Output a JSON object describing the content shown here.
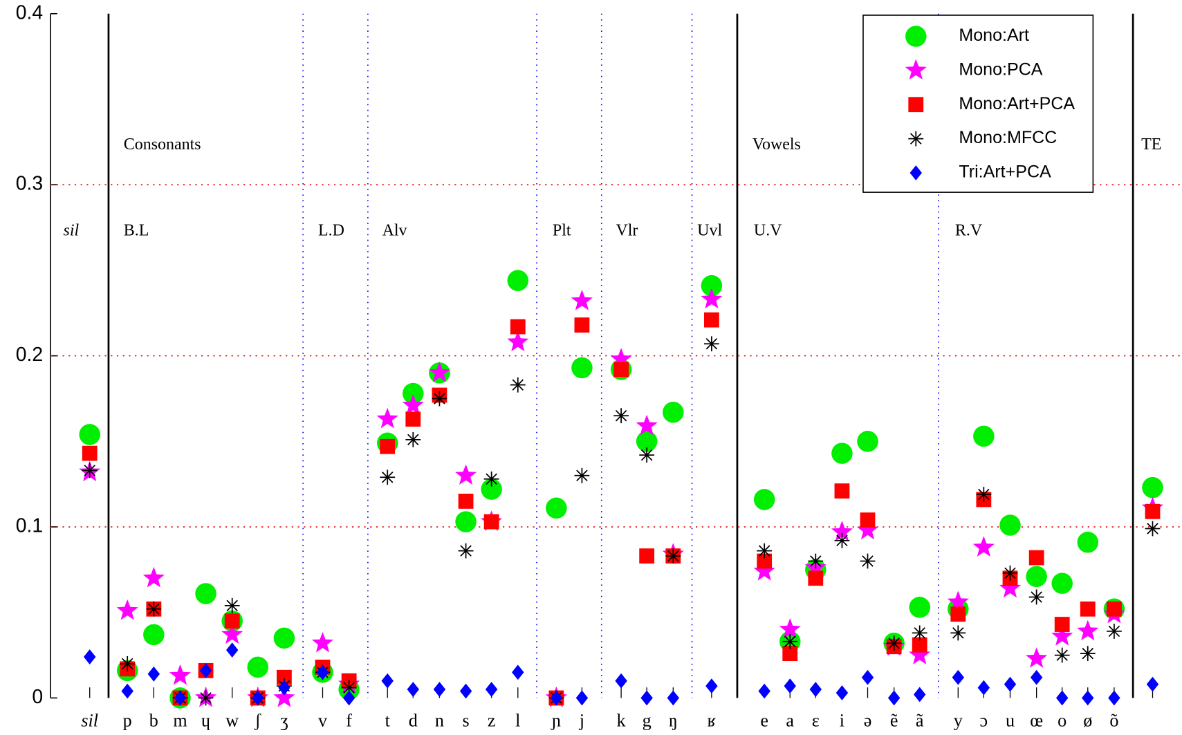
{
  "chart_data": {
    "type": "scatter",
    "categories": [
      "sil",
      "p",
      "b",
      "m",
      "ɥ",
      "w",
      "ʃ",
      "ʒ",
      "v",
      "f",
      "t",
      "d",
      "n",
      "s",
      "z",
      "l",
      "ɲ",
      "j",
      "k",
      "g",
      "ŋ",
      "ʁ",
      "e",
      "a",
      "ɛ",
      "i",
      "ə",
      "ẽ",
      "ã",
      "y",
      "ɔ",
      "u",
      "œ",
      "o",
      "ø",
      "õ",
      null
    ],
    "series": [
      {
        "name": "Mono:Art",
        "color": "#00ee00",
        "marker": "circle",
        "values": [
          0.154,
          0.016,
          0.037,
          0,
          0.061,
          0.045,
          0.018,
          0.035,
          0.015,
          0.005,
          0.149,
          0.178,
          0.19,
          0.103,
          0.122,
          0.244,
          0.111,
          0.193,
          0.192,
          0.15,
          0.167,
          0.241,
          0.116,
          0.033,
          0.075,
          0.143,
          0.15,
          0.032,
          0.053,
          0.052,
          0.153,
          0.101,
          0.071,
          0.067,
          0.091,
          0.052,
          0.123
        ]
      },
      {
        "name": "Mono:PCA",
        "color": "#ff00ff",
        "marker": "star",
        "values": [
          0.132,
          0.051,
          0.07,
          0.013,
          0,
          0.037,
          0,
          0,
          0.032,
          0.008,
          0.163,
          0.171,
          0.19,
          0.13,
          0.103,
          0.208,
          0,
          0.232,
          0.198,
          0.159,
          0.084,
          0.233,
          0.074,
          0.04,
          0.076,
          0.097,
          0.098,
          0.03,
          0.025,
          0.056,
          0.088,
          0.064,
          0.023,
          0.036,
          0.039,
          0.049,
          0.111
        ]
      },
      {
        "name": "Mono:Art+PCA",
        "color": "#ff0000",
        "marker": "square",
        "values": [
          0.143,
          0.017,
          0.052,
          0,
          0.016,
          0.045,
          0,
          0.012,
          0.018,
          0.01,
          0.147,
          0.163,
          0.177,
          0.115,
          0.103,
          0.217,
          0,
          0.218,
          0.192,
          0.083,
          0.083,
          0.221,
          0.08,
          0.026,
          0.07,
          0.121,
          0.104,
          0.03,
          0.031,
          0.049,
          0.116,
          0.07,
          0.082,
          0.043,
          0.052,
          0.052,
          0.109
        ]
      },
      {
        "name": "Mono:MFCC",
        "color": "#000000",
        "marker": "asterisk",
        "values": [
          0.133,
          0.02,
          0.052,
          0,
          0,
          0.054,
          0,
          0.007,
          0.015,
          0.006,
          0.129,
          0.151,
          0.175,
          0.086,
          0.128,
          0.183,
          0,
          0.13,
          0.165,
          0.142,
          0.083,
          0.207,
          0.086,
          0.033,
          0.08,
          0.092,
          0.08,
          0.032,
          0.038,
          0.038,
          0.119,
          0.073,
          0.059,
          0.025,
          0.026,
          0.039,
          0.099
        ]
      },
      {
        "name": "Tri:Art+PCA",
        "color": "#0000ff",
        "marker": "diamond",
        "values": [
          0.024,
          0.004,
          0.014,
          0,
          0.016,
          0.028,
          0,
          0.006,
          0.015,
          0,
          0.01,
          0.005,
          0.005,
          0.004,
          0.005,
          0.015,
          0,
          0,
          0.01,
          0,
          0,
          0.007,
          0.004,
          0.007,
          0.005,
          0.003,
          0.012,
          0,
          0.002,
          0.012,
          0.006,
          0.008,
          0.012,
          0,
          0,
          0,
          0.008
        ]
      }
    ],
    "annotations": [
      "Consonants",
      "Vowels",
      "TE",
      "sil",
      "B.L",
      "L.D",
      "Alv",
      "Plt",
      "Vlr",
      "Uvl",
      "U.V",
      "R.V"
    ],
    "ylim": [
      0,
      0.4
    ],
    "yticks": [
      0,
      0.1,
      0.2,
      0.3,
      0.4
    ],
    "grid": true,
    "grid_color": "#dd0000",
    "legend": "upper right"
  }
}
